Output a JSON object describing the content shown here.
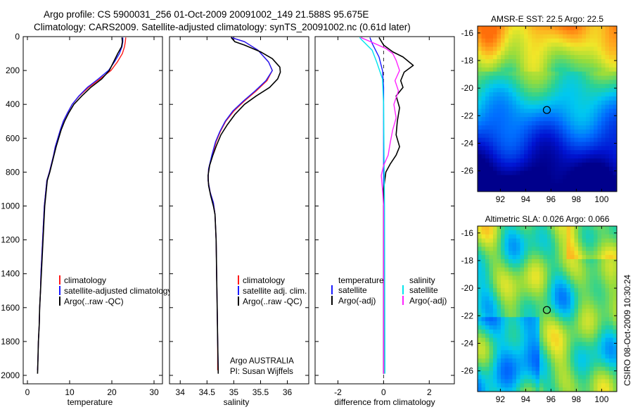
{
  "header": {
    "title_line1": "Argo profile: CS 5900031_256 01-Oct-2009 20091002_149 21.588S 95.675E",
    "title_line2": "Climatology: CARS2009. Satellite-adjusted climatology: synTS_20091002.nc (0.61d later)"
  },
  "side_label": "CSIRO 08-Oct-2009 10:30:24",
  "colors": {
    "climatology": "#ff1a1a",
    "satellite": "#1a1aff",
    "argo": "#000000",
    "salinity_satellite": "#00e5ee",
    "salinity_argo": "#ff22ff"
  },
  "chart_data": [
    {
      "type": "line",
      "xlabel": "temperature",
      "xlim": [
        -1,
        32
      ],
      "ylim": [
        2050,
        0
      ],
      "xticks": [
        "0",
        "10",
        "20",
        "30"
      ],
      "yticks": [
        "0",
        "200",
        "400",
        "600",
        "800",
        "1000",
        "1200",
        "1400",
        "1600",
        "1800",
        "2000"
      ],
      "legend": [
        "climatology",
        "satellite-adjusted climatology",
        "Argo(..raw -QC)"
      ],
      "series": [
        {
          "name": "climatology",
          "color_key": "climatology",
          "points": [
            [
              23.3,
              5
            ],
            [
              23.2,
              30
            ],
            [
              23.0,
              60
            ],
            [
              22.5,
              100
            ],
            [
              21.3,
              150
            ],
            [
              19.8,
              200
            ],
            [
              17.2,
              250
            ],
            [
              14.5,
              300
            ],
            [
              12.3,
              350
            ],
            [
              10.6,
              400
            ],
            [
              9.5,
              450
            ],
            [
              8.5,
              500
            ],
            [
              7.8,
              550
            ],
            [
              7.2,
              600
            ],
            [
              6.6,
              650
            ],
            [
              6.2,
              700
            ],
            [
              5.7,
              750
            ],
            [
              5.2,
              800
            ],
            [
              4.6,
              850
            ],
            [
              4.4,
              900
            ],
            [
              4.0,
              1000
            ],
            [
              3.8,
              1100
            ],
            [
              3.6,
              1200
            ],
            [
              3.4,
              1300
            ],
            [
              3.2,
              1400
            ],
            [
              3.1,
              1500
            ],
            [
              2.9,
              1600
            ],
            [
              2.8,
              1700
            ],
            [
              2.6,
              1800
            ],
            [
              2.5,
              1900
            ],
            [
              2.4,
              1970
            ]
          ]
        },
        {
          "name": "satellite-adjusted climatology",
          "color_key": "satellite",
          "points": [
            [
              22.6,
              5
            ],
            [
              22.6,
              30
            ],
            [
              22.4,
              60
            ],
            [
              21.8,
              100
            ],
            [
              20.6,
              150
            ],
            [
              19.2,
              200
            ],
            [
              16.8,
              250
            ],
            [
              14.2,
              300
            ],
            [
              12.2,
              350
            ],
            [
              10.6,
              400
            ],
            [
              9.5,
              450
            ],
            [
              8.5,
              500
            ],
            [
              7.8,
              550
            ],
            [
              7.2,
              600
            ],
            [
              6.6,
              650
            ],
            [
              6.2,
              700
            ],
            [
              5.7,
              750
            ],
            [
              5.2,
              800
            ],
            [
              4.6,
              850
            ],
            [
              4.4,
              900
            ],
            [
              4.0,
              1000
            ],
            [
              3.8,
              1100
            ],
            [
              3.6,
              1200
            ],
            [
              3.4,
              1300
            ],
            [
              3.2,
              1400
            ],
            [
              3.1,
              1500
            ],
            [
              2.9,
              1600
            ],
            [
              2.8,
              1700
            ],
            [
              2.6,
              1800
            ],
            [
              2.5,
              1900
            ],
            [
              2.4,
              1970
            ]
          ]
        },
        {
          "name": "Argo(..raw -QC)",
          "color_key": "argo",
          "points": [
            [
              22.4,
              5
            ],
            [
              22.5,
              30
            ],
            [
              22.3,
              60
            ],
            [
              21.4,
              100
            ],
            [
              20.4,
              150
            ],
            [
              19.4,
              200
            ],
            [
              17.6,
              250
            ],
            [
              15.0,
              300
            ],
            [
              12.9,
              350
            ],
            [
              11.0,
              400
            ],
            [
              9.8,
              450
            ],
            [
              8.8,
              500
            ],
            [
              8.0,
              550
            ],
            [
              7.4,
              600
            ],
            [
              6.8,
              650
            ],
            [
              6.3,
              700
            ],
            [
              5.8,
              750
            ],
            [
              5.3,
              800
            ],
            [
              4.7,
              850
            ],
            [
              4.5,
              900
            ],
            [
              4.1,
              1000
            ],
            [
              3.9,
              1100
            ],
            [
              3.7,
              1200
            ],
            [
              3.5,
              1300
            ],
            [
              3.3,
              1400
            ],
            [
              3.1,
              1500
            ],
            [
              2.9,
              1600
            ],
            [
              2.8,
              1700
            ],
            [
              2.6,
              1800
            ],
            [
              2.5,
              1900
            ],
            [
              2.4,
              1990
            ]
          ]
        }
      ]
    },
    {
      "type": "line",
      "xlabel": "salinity",
      "xlim": [
        33.8,
        36.4
      ],
      "ylim": [
        2050,
        0
      ],
      "xticks": [
        "34",
        "34.5",
        "35",
        "35.5",
        "36"
      ],
      "legend": [
        "climatology",
        "satellite adj. clim.",
        "Argo(..raw -QC)"
      ],
      "annotations": [
        "Argo AUSTRALIA",
        "PI: Susan Wijffels"
      ],
      "series": [
        {
          "name": "climatology",
          "color_key": "climatology",
          "points": [
            [
              34.95,
              5
            ],
            [
              35.2,
              30
            ],
            [
              35.45,
              80
            ],
            [
              35.65,
              150
            ],
            [
              35.72,
              200
            ],
            [
              35.62,
              260
            ],
            [
              35.42,
              320
            ],
            [
              35.2,
              380
            ],
            [
              35.0,
              440
            ],
            [
              34.85,
              500
            ],
            [
              34.75,
              560
            ],
            [
              34.67,
              620
            ],
            [
              34.6,
              700
            ],
            [
              34.53,
              780
            ],
            [
              34.52,
              850
            ],
            [
              34.56,
              920
            ],
            [
              34.62,
              980
            ],
            [
              34.65,
              1050
            ],
            [
              34.67,
              1200
            ],
            [
              34.68,
              1400
            ],
            [
              34.69,
              1600
            ],
            [
              34.7,
              1800
            ],
            [
              34.7,
              1970
            ]
          ]
        },
        {
          "name": "satellite adj. clim.",
          "color_key": "satellite",
          "points": [
            [
              34.95,
              5
            ],
            [
              35.2,
              30
            ],
            [
              35.45,
              80
            ],
            [
              35.65,
              150
            ],
            [
              35.72,
              200
            ],
            [
              35.6,
              260
            ],
            [
              35.4,
              320
            ],
            [
              35.18,
              380
            ],
            [
              34.98,
              440
            ],
            [
              34.84,
              500
            ],
            [
              34.74,
              560
            ],
            [
              34.66,
              620
            ],
            [
              34.59,
              700
            ],
            [
              34.53,
              780
            ],
            [
              34.52,
              850
            ],
            [
              34.56,
              920
            ],
            [
              34.62,
              980
            ],
            [
              34.65,
              1050
            ],
            [
              34.67,
              1200
            ],
            [
              34.68,
              1400
            ],
            [
              34.69,
              1600
            ],
            [
              34.7,
              1800
            ],
            [
              34.71,
              1970
            ]
          ]
        },
        {
          "name": "Argo(..raw -QC)",
          "color_key": "argo",
          "points": [
            [
              34.95,
              5
            ],
            [
              35.02,
              30
            ],
            [
              35.2,
              50
            ],
            [
              35.5,
              90
            ],
            [
              35.72,
              130
            ],
            [
              35.86,
              180
            ],
            [
              35.87,
              210
            ],
            [
              35.82,
              250
            ],
            [
              35.67,
              300
            ],
            [
              35.42,
              350
            ],
            [
              35.2,
              400
            ],
            [
              35.02,
              460
            ],
            [
              34.88,
              520
            ],
            [
              34.76,
              580
            ],
            [
              34.68,
              640
            ],
            [
              34.61,
              700
            ],
            [
              34.55,
              760
            ],
            [
              34.52,
              820
            ],
            [
              34.53,
              880
            ],
            [
              34.57,
              940
            ],
            [
              34.62,
              1000
            ],
            [
              34.65,
              1050
            ],
            [
              34.67,
              1200
            ],
            [
              34.68,
              1400
            ],
            [
              34.69,
              1600
            ],
            [
              34.7,
              1800
            ],
            [
              34.71,
              1990
            ]
          ]
        }
      ]
    },
    {
      "type": "line",
      "xlabel": "difference from climatology",
      "xlim": [
        -3,
        3.1
      ],
      "ylim": [
        2050,
        0
      ],
      "xticks": [
        "-2",
        "0",
        "2"
      ],
      "legend_titles": [
        "temperature",
        "salinity"
      ],
      "legend": [
        "satellite",
        "Argo(-adj)",
        "satellite",
        "Argo(-adj)"
      ],
      "series": [
        {
          "name": "temperature satellite",
          "color_key": "satellite",
          "points": [
            [
              -0.6,
              5
            ],
            [
              -0.5,
              40
            ],
            [
              -0.2,
              120
            ],
            [
              -0.05,
              200
            ],
            [
              0,
              300
            ],
            [
              0,
              600
            ],
            [
              0,
              1000
            ],
            [
              0,
              1500
            ],
            [
              0,
              1990
            ]
          ]
        },
        {
          "name": "temperature Argo(-adj)",
          "color_key": "argo",
          "points": [
            [
              -0.2,
              5
            ],
            [
              0,
              50
            ],
            [
              0.4,
              90
            ],
            [
              0.85,
              120
            ],
            [
              1.3,
              170
            ],
            [
              0.9,
              210
            ],
            [
              0.75,
              260
            ],
            [
              0.85,
              300
            ],
            [
              0.55,
              350
            ],
            [
              0.7,
              420
            ],
            [
              0.6,
              500
            ],
            [
              0.55,
              580
            ],
            [
              0.7,
              650
            ],
            [
              0.55,
              700
            ],
            [
              0.3,
              750
            ],
            [
              0.1,
              800
            ],
            [
              0,
              900
            ],
            [
              0,
              1200
            ],
            [
              0,
              1990
            ]
          ]
        },
        {
          "name": "salinity satellite",
          "color_key": "salinity_satellite",
          "points": [
            [
              -1.05,
              5
            ],
            [
              -0.95,
              20
            ],
            [
              -0.5,
              80
            ],
            [
              -0.3,
              150
            ],
            [
              -0.05,
              250
            ],
            [
              0,
              400
            ],
            [
              0.02,
              700
            ],
            [
              0.04,
              1000
            ],
            [
              0.05,
              1500
            ],
            [
              0.06,
              1990
            ]
          ]
        },
        {
          "name": "salinity Argo(-adj)",
          "color_key": "salinity_argo",
          "points": [
            [
              -1.0,
              5
            ],
            [
              -0.4,
              40
            ],
            [
              0.1,
              70
            ],
            [
              0.4,
              100
            ],
            [
              0.55,
              140
            ],
            [
              0.7,
              200
            ],
            [
              0.5,
              260
            ],
            [
              0.65,
              320
            ],
            [
              0.45,
              400
            ],
            [
              0.55,
              480
            ],
            [
              0.4,
              550
            ],
            [
              0.3,
              620
            ],
            [
              0.2,
              700
            ],
            [
              0,
              760
            ],
            [
              -0.1,
              820
            ],
            [
              -0.05,
              900
            ],
            [
              0,
              1000
            ],
            [
              0,
              1300
            ],
            [
              0,
              1990
            ]
          ]
        }
      ]
    },
    {
      "type": "heatmap",
      "title": "AMSR-E SST: 22.5 Argo: 22.5",
      "xlim": [
        90.2,
        101.2
      ],
      "ylim": [
        -27.5,
        -15.5
      ],
      "xticks": [
        "92",
        "94",
        "96",
        "98",
        "100"
      ],
      "yticks": [
        "-16",
        "-18",
        "-20",
        "-22",
        "-24",
        "-26"
      ],
      "marker": [
        95.675,
        -21.588
      ]
    },
    {
      "type": "heatmap",
      "title": "Altimetric SLA: 0.026 Argo: 0.066",
      "xlim": [
        90.2,
        101.2
      ],
      "ylim": [
        -27.5,
        -15.5
      ],
      "xticks": [
        "92",
        "94",
        "96",
        "98",
        "100"
      ],
      "yticks": [
        "-16",
        "-18",
        "-20",
        "-22",
        "-24",
        "-26"
      ],
      "marker": [
        95.675,
        -21.588
      ]
    }
  ]
}
